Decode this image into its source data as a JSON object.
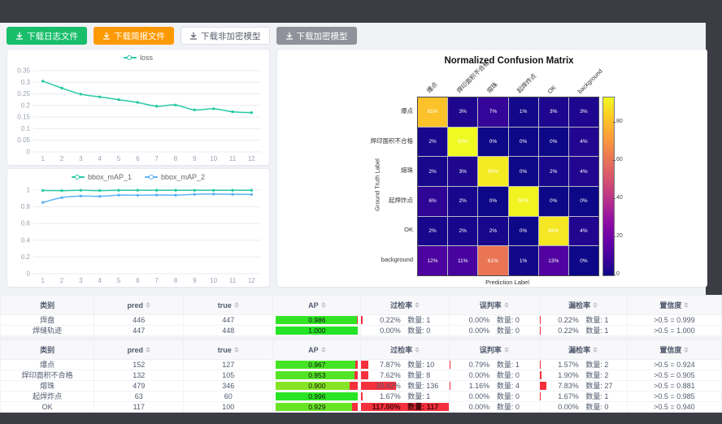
{
  "toolbar": {
    "buttons": [
      {
        "label": "下载日志文件",
        "variant": "green"
      },
      {
        "label": "下载简报文件",
        "variant": "orange"
      },
      {
        "label": "下载非加密模型",
        "variant": "plain"
      },
      {
        "label": "下载加密模型",
        "variant": "gray"
      }
    ]
  },
  "chart_data": [
    {
      "type": "line",
      "name": "loss-chart",
      "x": [
        1,
        2,
        3,
        4,
        5,
        6,
        7,
        8,
        9,
        10,
        11,
        12
      ],
      "series": [
        {
          "name": "loss",
          "color": "#29c8a5",
          "values": [
            0.305,
            0.275,
            0.249,
            0.237,
            0.225,
            0.213,
            0.197,
            0.202,
            0.181,
            0.186,
            0.173,
            0.169
          ]
        }
      ],
      "ylim": [
        0,
        0.35
      ],
      "yticks": [
        0,
        0.05,
        0.1,
        0.15,
        0.2,
        0.25,
        0.3,
        0.35
      ],
      "legend_position": "top",
      "grid": true
    },
    {
      "type": "line",
      "name": "bbox-map-chart",
      "x": [
        1,
        2,
        3,
        4,
        5,
        6,
        7,
        8,
        9,
        10,
        11,
        12
      ],
      "series": [
        {
          "name": "bbox_mAP_1",
          "color": "#29c8a5",
          "values": [
            0.995,
            0.993,
            0.997,
            0.994,
            0.997,
            0.998,
            0.998,
            0.998,
            0.997,
            0.997,
            0.998,
            0.998
          ]
        },
        {
          "name": "bbox_mAP_2",
          "color": "#5fb2f2",
          "values": [
            0.851,
            0.91,
            0.928,
            0.925,
            0.94,
            0.938,
            0.941,
            0.94,
            0.95,
            0.952,
            0.95,
            0.948
          ]
        }
      ],
      "ylim": [
        0,
        1
      ],
      "yticks": [
        0,
        0.2,
        0.4,
        0.6,
        0.8,
        1
      ],
      "legend_position": "top",
      "grid": true
    },
    {
      "type": "heatmap",
      "title": "Normalized Confusion Matrix",
      "xlabel": "Prediction Label",
      "ylabel": "Ground Truth Label",
      "labels": [
        "爆点",
        "焊印面积不合格",
        "熔珠",
        "起焊炸点",
        "OK",
        "background"
      ],
      "values_pct": [
        [
          81,
          3,
          7,
          1,
          3,
          3
        ],
        [
          2,
          93,
          0,
          0,
          0,
          4
        ],
        [
          2,
          3,
          90,
          0,
          2,
          4
        ],
        [
          6,
          2,
          0,
          92,
          0,
          0
        ],
        [
          2,
          2,
          2,
          0,
          89,
          4
        ],
        [
          12,
          11,
          61,
          1,
          13,
          0
        ]
      ],
      "vmax": 93,
      "colorbar_ticks": [
        0,
        20,
        40,
        60,
        80
      ],
      "colormap": "plasma"
    }
  ],
  "labels": {
    "count_prefix": "数量: "
  },
  "table_columns": [
    {
      "label": "类别",
      "key": "name",
      "type": "text",
      "sortable": false
    },
    {
      "label": "pred",
      "key": "pred",
      "type": "text",
      "sortable": true
    },
    {
      "label": "true",
      "key": "true",
      "type": "text",
      "sortable": true
    },
    {
      "label": "AP",
      "key": "ap",
      "type": "ap",
      "sortable": true
    },
    {
      "label": "过检率",
      "key": "over",
      "type": "pct",
      "sortable": true
    },
    {
      "label": "误判率",
      "key": "mis",
      "type": "pct",
      "sortable": true
    },
    {
      "label": "漏检率",
      "key": "miss",
      "type": "pct",
      "sortable": true
    },
    {
      "label": "置信度",
      "key": "conf",
      "type": "text",
      "sortable": true
    }
  ],
  "tables": [
    {
      "rows": [
        {
          "name": "焊盘",
          "pred": "446",
          "true": "447",
          "ap": 0.986,
          "over": {
            "pct": "0.22%",
            "count": 1
          },
          "mis": {
            "pct": "0.00%",
            "count": 0
          },
          "miss": {
            "pct": "0.22%",
            "count": 1
          },
          "conf": ">0.5 = 0.999"
        },
        {
          "name": "焊缝轨迹",
          "pred": "447",
          "true": "448",
          "ap": 1.0,
          "over": {
            "pct": "0.00%",
            "count": 0
          },
          "mis": {
            "pct": "0.00%",
            "count": 0
          },
          "miss": {
            "pct": "0.22%",
            "count": 1
          },
          "conf": ">0.5 = 1.000"
        }
      ]
    },
    {
      "rows": [
        {
          "name": "爆点",
          "pred": "152",
          "true": "127",
          "ap": 0.967,
          "over": {
            "pct": "7.87%",
            "count": 10
          },
          "mis": {
            "pct": "0.79%",
            "count": 1
          },
          "miss": {
            "pct": "1.57%",
            "count": 2
          },
          "conf": ">0.5 = 0.924"
        },
        {
          "name": "焊印面积不合格",
          "pred": "132",
          "true": "105",
          "ap": 0.953,
          "over": {
            "pct": "7.62%",
            "count": 8
          },
          "mis": {
            "pct": "0.00%",
            "count": 0
          },
          "miss": {
            "pct": "1.90%",
            "count": 2
          },
          "conf": ">0.5 = 0.905"
        },
        {
          "name": "熔珠",
          "pred": "479",
          "true": "346",
          "ap": 0.9,
          "over": {
            "pct": "39.42%",
            "count": 136
          },
          "mis": {
            "pct": "1.16%",
            "count": 4
          },
          "miss": {
            "pct": "7.83%",
            "count": 27
          },
          "conf": ">0.5 = 0.881"
        },
        {
          "name": "起焊炸点",
          "pred": "63",
          "true": "60",
          "ap": 0.996,
          "over": {
            "pct": "1.67%",
            "count": 1
          },
          "mis": {
            "pct": "0.00%",
            "count": 0
          },
          "miss": {
            "pct": "1.67%",
            "count": 1
          },
          "conf": ">0.5 = 0.985"
        },
        {
          "name": "OK",
          "pred": "117",
          "true": "100",
          "ap": 0.929,
          "over": {
            "pct": "117.00%",
            "count": 117
          },
          "mis": {
            "pct": "0.00%",
            "count": 0
          },
          "miss": {
            "pct": "0.00%",
            "count": 0
          },
          "conf": ">0.5 = 0.940"
        }
      ]
    }
  ]
}
